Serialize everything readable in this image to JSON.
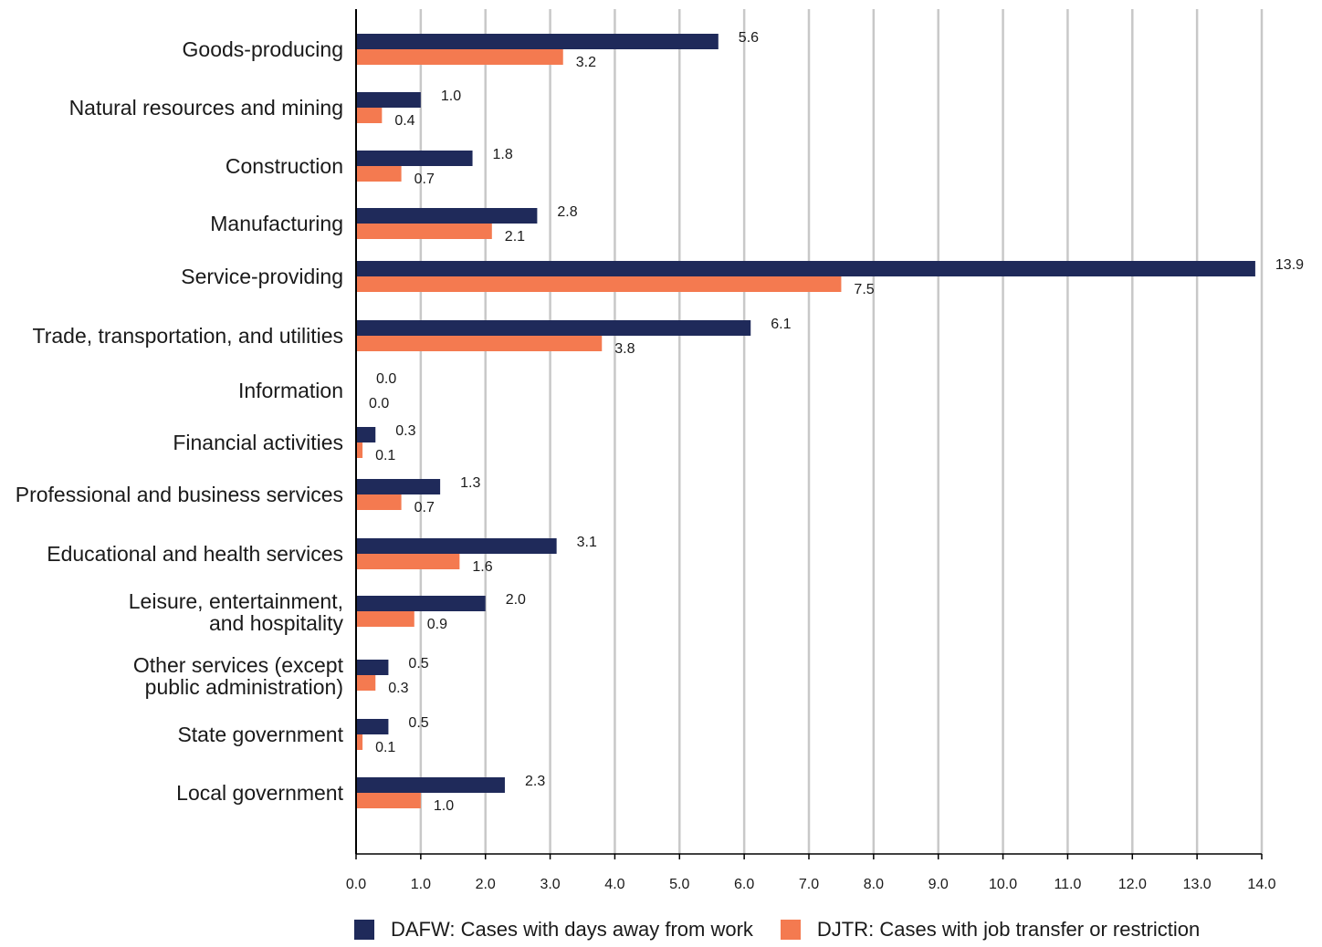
{
  "chart_data": {
    "type": "bar",
    "orientation": "horizontal",
    "categories": [
      [
        "Goods-producing"
      ],
      [
        "Natural resources and mining"
      ],
      [
        "Construction"
      ],
      [
        "Manufacturing"
      ],
      [
        "Service-providing"
      ],
      [
        "Trade, transportation, and utilities"
      ],
      [
        "Information"
      ],
      [
        "Financial activities"
      ],
      [
        "Professional and business services"
      ],
      [
        "Educational and health services"
      ],
      [
        "Leisure, entertainment,",
        "and hospitality"
      ],
      [
        "Other services (except",
        "public administration)"
      ],
      [
        "State government"
      ],
      [
        "Local government"
      ]
    ],
    "series": [
      {
        "name": "DAFW: Cases with days away from work",
        "color": "#1f2a5a",
        "values": [
          5.6,
          1.0,
          1.8,
          2.8,
          13.9,
          6.1,
          0.0,
          0.3,
          1.3,
          3.1,
          2.0,
          0.5,
          0.5,
          2.3
        ],
        "labels": [
          "5.6",
          "1.0",
          "1.8",
          "2.8",
          "13.9",
          "6.1",
          "0.0",
          "0.3",
          "1.3",
          "3.1",
          "2.0",
          "0.5",
          "0.5",
          "2.3"
        ]
      },
      {
        "name": "DJTR: Cases with job transfer or restriction",
        "color": "#f47a50",
        "values": [
          3.2,
          0.4,
          0.7,
          2.1,
          7.5,
          3.8,
          0.0,
          0.1,
          0.7,
          1.6,
          0.9,
          0.3,
          0.1,
          1.0
        ],
        "labels": [
          "3.2",
          "0.4",
          "0.7",
          "2.1",
          "7.5",
          "3.8",
          "0.0",
          "0.1",
          "0.7",
          "1.6",
          "0.9",
          "0.3",
          "0.1",
          "1.0"
        ]
      }
    ],
    "xlim": [
      0,
      14
    ],
    "xticks": [
      "0.0",
      "1.0",
      "2.0",
      "3.0",
      "4.0",
      "5.0",
      "6.0",
      "7.0",
      "8.0",
      "9.0",
      "10.0",
      "11.0",
      "12.0",
      "13.0",
      "14.0"
    ],
    "grid": true,
    "legend_position": "bottom",
    "title": "",
    "xlabel": "",
    "ylabel": ""
  },
  "legend": {
    "dafw_label": "DAFW: Cases with days away from work",
    "djtr_label": "DJTR: Cases with job transfer or restriction"
  }
}
